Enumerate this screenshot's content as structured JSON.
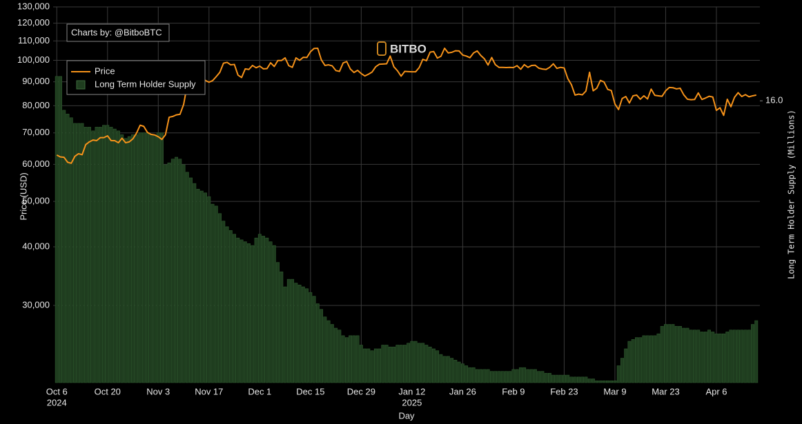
{
  "chart_data": {
    "type": "bar-line",
    "credit": "Charts by: @BitboBTC",
    "watermark": "BITBO",
    "xlabel": "Day",
    "ylabel": "Price (USD)",
    "y2label": "Long Term Holder Supply (Millions)",
    "x": [
      "2024-10-06",
      "2024-10-07",
      "2024-10-08",
      "2024-10-09",
      "2024-10-10",
      "2024-10-11",
      "2024-10-12",
      "2024-10-13",
      "2024-10-14",
      "2024-10-15",
      "2024-10-16",
      "2024-10-17",
      "2024-10-18",
      "2024-10-19",
      "2024-10-20",
      "2024-10-21",
      "2024-10-22",
      "2024-10-23",
      "2024-10-24",
      "2024-10-25",
      "2024-10-26",
      "2024-10-27",
      "2024-10-28",
      "2024-10-29",
      "2024-10-30",
      "2024-10-31",
      "2024-11-01",
      "2024-11-02",
      "2024-11-03",
      "2024-11-04",
      "2024-11-05",
      "2024-11-06",
      "2024-11-07",
      "2024-11-08",
      "2024-11-09",
      "2024-11-10",
      "2024-11-11",
      "2024-11-12",
      "2024-11-13",
      "2024-11-14",
      "2024-11-15",
      "2024-11-16",
      "2024-11-17",
      "2024-11-18",
      "2024-11-19",
      "2024-11-20",
      "2024-11-21",
      "2024-11-22",
      "2024-11-23",
      "2024-11-24",
      "2024-11-25",
      "2024-11-26",
      "2024-11-27",
      "2024-11-28",
      "2024-11-29",
      "2024-11-30",
      "2024-12-01",
      "2024-12-02",
      "2024-12-03",
      "2024-12-04",
      "2024-12-05",
      "2024-12-06",
      "2024-12-07",
      "2024-12-08",
      "2024-12-09",
      "2024-12-10",
      "2024-12-11",
      "2024-12-12",
      "2024-12-13",
      "2024-12-14",
      "2024-12-15",
      "2024-12-16",
      "2024-12-17",
      "2024-12-18",
      "2024-12-19",
      "2024-12-20",
      "2024-12-21",
      "2024-12-22",
      "2024-12-23",
      "2024-12-24",
      "2024-12-25",
      "2024-12-26",
      "2024-12-27",
      "2024-12-28",
      "2024-12-29",
      "2024-12-30",
      "2024-12-31",
      "2025-01-01",
      "2025-01-02",
      "2025-01-03",
      "2025-01-04",
      "2025-01-05",
      "2025-01-06",
      "2025-01-07",
      "2025-01-08",
      "2025-01-09",
      "2025-01-10",
      "2025-01-11",
      "2025-01-12",
      "2025-01-13",
      "2025-01-14",
      "2025-01-15",
      "2025-01-16",
      "2025-01-17",
      "2025-01-18",
      "2025-01-19",
      "2025-01-20",
      "2025-01-21",
      "2025-01-22",
      "2025-01-23",
      "2025-01-24",
      "2025-01-25",
      "2025-01-26",
      "2025-01-27",
      "2025-01-28",
      "2025-01-29",
      "2025-01-30",
      "2025-01-31",
      "2025-02-01",
      "2025-02-02",
      "2025-02-03",
      "2025-02-04",
      "2025-02-05",
      "2025-02-06",
      "2025-02-07",
      "2025-02-08",
      "2025-02-09",
      "2025-02-10",
      "2025-02-11",
      "2025-02-12",
      "2025-02-13",
      "2025-02-14",
      "2025-02-15",
      "2025-02-16",
      "2025-02-17",
      "2025-02-18",
      "2025-02-19",
      "2025-02-20",
      "2025-02-21",
      "2025-02-22",
      "2025-02-23",
      "2025-02-24",
      "2025-02-25",
      "2025-02-26",
      "2025-02-27",
      "2025-02-28",
      "2025-03-01",
      "2025-03-02",
      "2025-03-03",
      "2025-03-04",
      "2025-03-05",
      "2025-03-06",
      "2025-03-07",
      "2025-03-08",
      "2025-03-09",
      "2025-03-10",
      "2025-03-11",
      "2025-03-12",
      "2025-03-13",
      "2025-03-14",
      "2025-03-15",
      "2025-03-16",
      "2025-03-17",
      "2025-03-18",
      "2025-03-19",
      "2025-03-20",
      "2025-03-21",
      "2025-03-22",
      "2025-03-23",
      "2025-03-24",
      "2025-03-25",
      "2025-03-26",
      "2025-03-27",
      "2025-03-28",
      "2025-03-29",
      "2025-03-30",
      "2025-03-31",
      "2025-04-01",
      "2025-04-02",
      "2025-04-03",
      "2025-04-04",
      "2025-04-05",
      "2025-04-06",
      "2025-04-07",
      "2025-04-08",
      "2025-04-09",
      "2025-04-10",
      "2025-04-11",
      "2025-04-12",
      "2025-04-13",
      "2025-04-14",
      "2025-04-15",
      "2025-04-16",
      "2025-04-17"
    ],
    "series": [
      {
        "name": "Price",
        "color": "#f7931a",
        "kind": "line",
        "axis": "y",
        "values": [
          62800,
          62200,
          62100,
          60600,
          60300,
          62400,
          63200,
          62900,
          66100,
          67000,
          67600,
          67400,
          68400,
          68400,
          69000,
          67400,
          67400,
          66700,
          68200,
          66700,
          67000,
          68000,
          69900,
          72700,
          72300,
          70200,
          69500,
          69300,
          68700,
          67800,
          69400,
          75600,
          75900,
          76500,
          76700,
          80500,
          88700,
          87900,
          90500,
          87300,
          91100,
          90600,
          89800,
          90500,
          92300,
          94300,
          98600,
          99000,
          97800,
          98000,
          93000,
          91900,
          95900,
          95600,
          97500,
          96400,
          97200,
          95900,
          96000,
          98800,
          97000,
          99900,
          99900,
          101200,
          97400,
          96600,
          101200,
          100000,
          101500,
          101400,
          104300,
          106000,
          106100,
          100200,
          97500,
          97800,
          97300,
          95100,
          94700,
          98700,
          99400,
          95800,
          94200,
          95200,
          93700,
          92600,
          93400,
          94400,
          96900,
          98100,
          98200,
          98300,
          102100,
          96900,
          95000,
          92500,
          94700,
          94600,
          94500,
          94500,
          96500,
          100500,
          99800,
          104100,
          104400,
          101100,
          102000,
          106100,
          103700,
          104000,
          104800,
          104700,
          102600,
          102100,
          101300,
          103700,
          104700,
          102400,
          100700,
          97700,
          101400,
          97900,
          96600,
          96600,
          96500,
          96600,
          96500,
          97400,
          95700,
          97900,
          96600,
          97500,
          97600,
          96200,
          95800,
          95600,
          96600,
          98300,
          96100,
          96600,
          96300,
          91400,
          88700,
          84300,
          84700,
          84400,
          86000,
          94300,
          86100,
          87200,
          90600,
          89900,
          86700,
          86200,
          80700,
          78500,
          82900,
          83700,
          81100,
          84000,
          84300,
          82600,
          84000,
          82700,
          86800,
          84200,
          84000,
          83800,
          86100,
          87500,
          87400,
          86900,
          87200,
          84400,
          82600,
          82400,
          82500,
          85200,
          82500,
          83100,
          83800,
          83500,
          78200,
          79200,
          76300,
          82600,
          79600,
          83400,
          85300,
          83700,
          84500,
          83600,
          84000,
          84300
        ]
      },
      {
        "name": "Long Term Holder Supply",
        "color": "#1f3d1f",
        "kind": "bar",
        "axis": "y2",
        "values": [
          16.13,
          16.13,
          15.95,
          15.93,
          15.91,
          15.88,
          15.88,
          15.88,
          15.86,
          15.86,
          15.84,
          15.86,
          15.86,
          15.87,
          15.87,
          15.86,
          15.85,
          15.84,
          15.82,
          15.8,
          15.81,
          15.82,
          15.82,
          15.83,
          15.83,
          15.83,
          15.82,
          15.82,
          15.83,
          15.83,
          15.66,
          15.67,
          15.69,
          15.7,
          15.69,
          15.66,
          15.62,
          15.59,
          15.56,
          15.53,
          15.52,
          15.51,
          15.49,
          15.45,
          15.44,
          15.4,
          15.36,
          15.33,
          15.31,
          15.29,
          15.27,
          15.26,
          15.25,
          15.24,
          15.23,
          15.27,
          15.29,
          15.28,
          15.27,
          15.25,
          15.23,
          15.14,
          15.09,
          15.01,
          15.05,
          15.05,
          15.03,
          15.02,
          15.01,
          15.0,
          14.98,
          14.96,
          14.92,
          14.89,
          14.85,
          14.83,
          14.81,
          14.79,
          14.78,
          14.75,
          14.74,
          14.75,
          14.75,
          14.75,
          14.7,
          14.68,
          14.68,
          14.67,
          14.68,
          14.68,
          14.7,
          14.7,
          14.69,
          14.69,
          14.7,
          14.7,
          14.7,
          14.71,
          14.72,
          14.72,
          14.71,
          14.71,
          14.7,
          14.69,
          14.68,
          14.67,
          14.65,
          14.64,
          14.64,
          14.63,
          14.62,
          14.61,
          14.6,
          14.59,
          14.58,
          14.58,
          14.57,
          14.57,
          14.57,
          14.57,
          14.56,
          14.56,
          14.56,
          14.56,
          14.56,
          14.56,
          14.57,
          14.57,
          14.58,
          14.58,
          14.57,
          14.57,
          14.57,
          14.56,
          14.56,
          14.55,
          14.55,
          14.54,
          14.54,
          14.54,
          14.54,
          14.54,
          14.53,
          14.53,
          14.53,
          14.53,
          14.53,
          14.52,
          14.52,
          14.51,
          14.51,
          14.51,
          14.51,
          14.51,
          14.51,
          14.59,
          14.63,
          14.68,
          14.72,
          14.73,
          14.74,
          14.74,
          14.75,
          14.75,
          14.75,
          14.75,
          14.76,
          14.8,
          14.81,
          14.81,
          14.81,
          14.8,
          14.8,
          14.79,
          14.79,
          14.78,
          14.78,
          14.78,
          14.77,
          14.77,
          14.78,
          14.77,
          14.76,
          14.76,
          14.76,
          14.77,
          14.78,
          14.78,
          14.78,
          14.78,
          14.78,
          14.78,
          14.81,
          14.83
        ]
      }
    ],
    "xlim": [
      "2024-10-05",
      "2025-04-18"
    ],
    "xticks": [
      {
        "value": "2024-10-06",
        "label": "Oct 6",
        "year": "2024"
      },
      {
        "value": "2024-10-20",
        "label": "Oct 20"
      },
      {
        "value": "2024-11-03",
        "label": "Nov 3"
      },
      {
        "value": "2024-11-17",
        "label": "Nov 17"
      },
      {
        "value": "2024-12-01",
        "label": "Dec 1"
      },
      {
        "value": "2024-12-15",
        "label": "Dec 15"
      },
      {
        "value": "2024-12-29",
        "label": "Dec 29"
      },
      {
        "value": "2025-01-12",
        "label": "Jan 12",
        "year": "2025"
      },
      {
        "value": "2025-01-26",
        "label": "Jan 26"
      },
      {
        "value": "2025-02-09",
        "label": "Feb 9"
      },
      {
        "value": "2025-02-23",
        "label": "Feb 23"
      },
      {
        "value": "2025-03-09",
        "label": "Mar 9"
      },
      {
        "value": "2025-03-23",
        "label": "Mar 23"
      },
      {
        "value": "2025-04-06",
        "label": "Apr 6"
      }
    ],
    "y_scale": "log",
    "ylim": [
      20530,
      130000
    ],
    "yticks": [
      {
        "value": 30000,
        "label": "30,000"
      },
      {
        "value": 40000,
        "label": "40,000"
      },
      {
        "value": 50000,
        "label": "50,000"
      },
      {
        "value": 60000,
        "label": "60,000"
      },
      {
        "value": 70000,
        "label": "70,000"
      },
      {
        "value": 80000,
        "label": "80,000"
      },
      {
        "value": 90000,
        "label": "90,000"
      },
      {
        "value": 100000,
        "label": "100,000"
      },
      {
        "value": 110000,
        "label": "110,000"
      },
      {
        "value": 120000,
        "label": "120,000"
      },
      {
        "value": 130000,
        "label": "130,000"
      }
    ],
    "y2lim": [
      14.5,
      16.5
    ],
    "y2ticks": [
      {
        "value": 16,
        "label": "16.0"
      }
    ],
    "grid": true,
    "legend": "top-left"
  }
}
